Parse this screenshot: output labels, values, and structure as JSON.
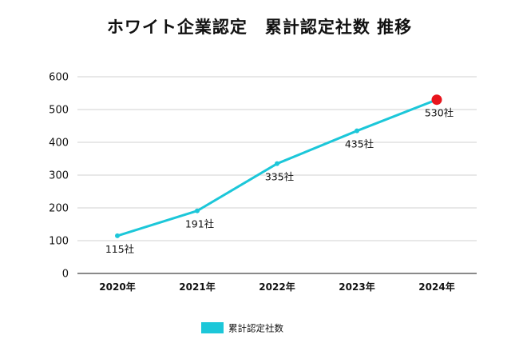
{
  "chart_data": {
    "type": "line",
    "title": "ホワイト企業認定　累計認定社数 推移",
    "categories": [
      "2020年",
      "2021年",
      "2022年",
      "2023年",
      "2024年"
    ],
    "series": [
      {
        "name": "累計認定社数",
        "values": [
          115,
          191,
          335,
          435,
          530
        ],
        "data_labels": [
          "115社",
          "191社",
          "335社",
          "435社",
          "530社"
        ],
        "color": "#1cc7d9"
      }
    ],
    "y_ticks": [
      "0",
      "100",
      "200",
      "300",
      "400",
      "500",
      "600"
    ],
    "ylim": [
      0,
      600
    ],
    "grid": true,
    "legend": "bottom",
    "highlight_color": "#e8141c"
  }
}
